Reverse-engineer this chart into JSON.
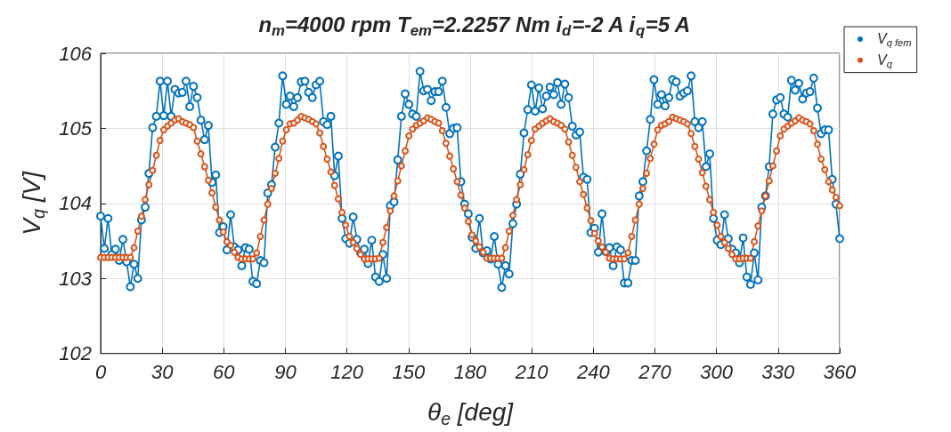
{
  "chart_data": {
    "type": "line",
    "title": "n$_{m}$=4000 rpm T$_{em}$=2.2257 Nm i$_{d}$=-2 A i$_{q}$=5 A",
    "xlabel": "θ$_{e}$ [deg]",
    "ylabel": "V$_{q}$ [V]",
    "xlim": [
      0,
      360
    ],
    "xticks": [
      0,
      30,
      60,
      90,
      120,
      150,
      180,
      210,
      240,
      270,
      300,
      330,
      360
    ],
    "ylim": [
      102,
      106
    ],
    "yticks": [
      102,
      103,
      104,
      105,
      106
    ],
    "grid": true,
    "legend": "top right",
    "marker": "circle",
    "line_style": "solid",
    "x": [
      0,
      1.81,
      3.62,
      5.43,
      7.24,
      9.05,
      10.85,
      12.66,
      14.47,
      16.28,
      18.09,
      19.9,
      21.71,
      23.52,
      25.33,
      27.14,
      28.94,
      30.75,
      32.56,
      34.37,
      36.18,
      37.99,
      39.8,
      41.61,
      43.42,
      45.23,
      47.04,
      48.84,
      50.65,
      52.46,
      54.27,
      56.08,
      57.89,
      59.7,
      61.51,
      63.32,
      65.13,
      66.93,
      68.74,
      70.55,
      72.36,
      74.17,
      75.98,
      77.79,
      79.6,
      81.41,
      83.22,
      85.03,
      86.83,
      88.64,
      90.45,
      92.26,
      94.07,
      95.88,
      97.69,
      99.5,
      101.31,
      103.12,
      104.92,
      106.73,
      108.54,
      110.35,
      112.16,
      113.97,
      115.78,
      117.59,
      119.4,
      121.21,
      123.02,
      124.82,
      126.63,
      128.44,
      130.25,
      132.06,
      133.87,
      135.68,
      137.49,
      139.3,
      141.11,
      142.91,
      144.72,
      146.53,
      148.34,
      150.15,
      151.96,
      153.77,
      155.58,
      157.39,
      159.2,
      161.01,
      162.81,
      164.62,
      166.43,
      168.24,
      170.05,
      171.86,
      173.67,
      175.48,
      177.29,
      179.1,
      180.9,
      182.71,
      184.52,
      186.33,
      188.14,
      189.95,
      191.76,
      193.57,
      195.38,
      197.19,
      198.99,
      200.8,
      202.61,
      204.42,
      206.23,
      208.04,
      209.85,
      211.66,
      213.47,
      215.28,
      217.09,
      218.89,
      220.7,
      222.51,
      224.32,
      226.13,
      227.94,
      229.75,
      231.56,
      233.37,
      235.18,
      236.98,
      238.79,
      240.6,
      242.41,
      244.22,
      246.03,
      247.84,
      249.65,
      251.46,
      253.27,
      255.08,
      256.88,
      258.69,
      260.5,
      262.31,
      264.12,
      265.93,
      267.74,
      269.55,
      271.36,
      273.17,
      274.97,
      276.78,
      278.59,
      280.4,
      282.21,
      284.02,
      285.83,
      287.64,
      289.45,
      291.26,
      293.07,
      294.87,
      296.68,
      298.49,
      300.3,
      302.11,
      303.92,
      305.73,
      307.54,
      309.35,
      311.16,
      312.96,
      314.77,
      316.58,
      318.39,
      320.2,
      322.01,
      323.82,
      325.63,
      327.44,
      329.25,
      331.06,
      332.86,
      334.67,
      336.48,
      338.29,
      340.1,
      341.91,
      343.72,
      345.53,
      347.34,
      349.15,
      350.95,
      352.76,
      354.57,
      356.38,
      358.19,
      360
    ],
    "series": [
      {
        "name": "V$_{q fem}$",
        "color": "#0072bd",
        "values": [
          103.83,
          103.4,
          103.8,
          103.32,
          103.39,
          103.24,
          103.52,
          103.22,
          102.89,
          103.19,
          103.0,
          103.78,
          103.95,
          104.4,
          105.01,
          105.16,
          105.63,
          105.17,
          105.63,
          105.16,
          105.52,
          105.47,
          105.48,
          105.63,
          105.29,
          105.56,
          105.41,
          105.11,
          104.85,
          105.04,
          104.28,
          104.38,
          103.61,
          103.69,
          103.38,
          103.85,
          103.42,
          103.38,
          103.17,
          103.41,
          103.39,
          102.96,
          102.93,
          103.24,
          103.21,
          104.14,
          104.25,
          104.75,
          105.07,
          105.7,
          105.32,
          105.43,
          105.29,
          105.41,
          105.62,
          105.63,
          105.48,
          105.41,
          105.58,
          105.63,
          105.09,
          105.05,
          105.16,
          104.37,
          104.63,
          103.8,
          103.53,
          103.47,
          103.82,
          103.52,
          103.34,
          103.39,
          103.2,
          103.51,
          103.02,
          102.96,
          103.32,
          103.0,
          103.97,
          104.02,
          104.58,
          105.16,
          105.46,
          105.32,
          105.19,
          105.16,
          105.76,
          105.5,
          105.52,
          105.37,
          105.49,
          105.49,
          105.63,
          105.28,
          104.93,
          105.0,
          105.01,
          104.29,
          103.99,
          103.86,
          103.55,
          103.4,
          103.8,
          103.34,
          103.37,
          103.26,
          103.56,
          103.19,
          102.88,
          103.17,
          103.06,
          103.73,
          103.99,
          104.39,
          104.94,
          105.25,
          105.58,
          105.23,
          105.54,
          105.26,
          105.43,
          105.55,
          105.45,
          105.61,
          105.32,
          105.59,
          105.41,
          105.03,
          104.91,
          104.95,
          104.35,
          104.32,
          103.61,
          103.67,
          103.35,
          103.86,
          103.36,
          103.41,
          103.17,
          103.42,
          103.38,
          102.94,
          102.94,
          103.24,
          103.24,
          104.1,
          104.29,
          104.7,
          105.12,
          105.65,
          105.32,
          105.45,
          105.3,
          105.41,
          105.65,
          105.62,
          105.43,
          105.47,
          105.5,
          105.7,
          105.09,
          105.01,
          105.09,
          104.49,
          104.66,
          103.8,
          103.51,
          103.45,
          103.85,
          103.53,
          103.39,
          103.34,
          103.21,
          103.54,
          103.02,
          102.92,
          103.34,
          102.98,
          103.95,
          104.1,
          104.49,
          105.19,
          105.38,
          105.41,
          105.19,
          105.15,
          105.64,
          105.51,
          105.6,
          105.39,
          105.47,
          105.49,
          105.67,
          105.27,
          104.93,
          104.98,
          104.98,
          104.32,
          103.99,
          103.53
        ]
      },
      {
        "name": "V$_{q}$",
        "color": "#d95319",
        "values": [
          103.28,
          103.28,
          103.28,
          103.28,
          103.28,
          103.28,
          103.28,
          103.28,
          103.28,
          103.41,
          103.63,
          103.83,
          104.05,
          104.25,
          104.44,
          104.64,
          104.84,
          104.98,
          105.03,
          105.07,
          105.11,
          105.13,
          105.09,
          105.07,
          105.05,
          105.01,
          104.83,
          104.66,
          104.49,
          104.31,
          104.14,
          103.95,
          103.78,
          103.62,
          103.49,
          103.44,
          103.35,
          103.28,
          103.26,
          103.26,
          103.26,
          103.26,
          103.34,
          103.56,
          103.78,
          103.99,
          104.2,
          104.4,
          104.6,
          104.83,
          104.98,
          105.06,
          105.07,
          105.11,
          105.16,
          105.14,
          105.12,
          105.09,
          105.06,
          104.94,
          104.76,
          104.59,
          104.42,
          104.24,
          104.06,
          103.88,
          103.71,
          103.56,
          103.48,
          103.4,
          103.32,
          103.26,
          103.26,
          103.26,
          103.26,
          103.27,
          103.48,
          103.68,
          103.9,
          104.1,
          104.3,
          104.5,
          104.7,
          104.9,
          104.99,
          105.04,
          105.07,
          105.1,
          105.14,
          105.12,
          105.09,
          105.07,
          104.97,
          104.8,
          104.63,
          104.46,
          104.29,
          104.11,
          103.94,
          103.76,
          103.58,
          103.5,
          103.42,
          103.35,
          103.27,
          103.27,
          103.27,
          103.27,
          103.27,
          103.41,
          103.63,
          103.84,
          104.05,
          104.25,
          104.45,
          104.65,
          104.84,
          104.99,
          105.03,
          105.07,
          105.1,
          105.13,
          105.09,
          105.07,
          105.04,
          104.99,
          104.82,
          104.64,
          104.48,
          104.29,
          104.12,
          103.94,
          103.77,
          103.6,
          103.5,
          103.42,
          103.35,
          103.27,
          103.26,
          103.26,
          103.26,
          103.26,
          103.34,
          103.56,
          103.78,
          103.99,
          104.2,
          104.4,
          104.6,
          104.79,
          104.98,
          105.04,
          105.06,
          105.09,
          105.15,
          105.13,
          105.11,
          105.09,
          105.06,
          104.93,
          104.76,
          104.59,
          104.41,
          104.23,
          104.05,
          103.88,
          103.71,
          103.56,
          103.48,
          103.4,
          103.32,
          103.26,
          103.26,
          103.27,
          103.27,
          103.27,
          103.49,
          103.7,
          103.9,
          104.1,
          104.3,
          104.5,
          104.7,
          104.9,
          104.99,
          105.03,
          105.07,
          105.1,
          105.14,
          105.11,
          105.09,
          105.06,
          104.97,
          104.79,
          104.59,
          104.45,
          104.29,
          104.18,
          104.08,
          103.97
        ]
      }
    ]
  }
}
